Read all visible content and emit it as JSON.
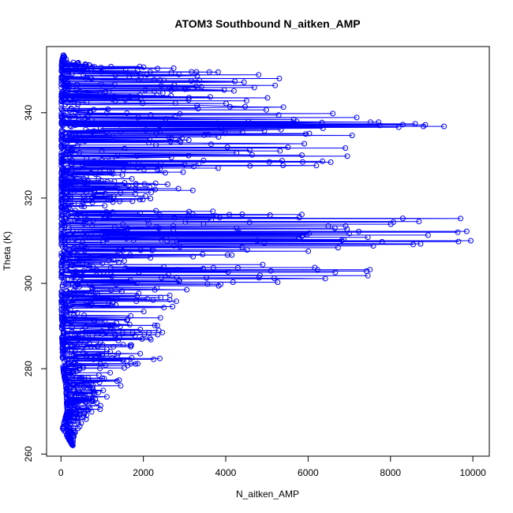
{
  "chart_data": {
    "type": "line",
    "title": "ATOM3 Southbound N_aitken_AMP",
    "xlabel": "N_aitken_AMP",
    "ylabel": "Theta (K)",
    "xlim": [
      -350,
      10400
    ],
    "ylim": [
      259.5,
      355.5
    ],
    "xticks": [
      0,
      2000,
      4000,
      6000,
      8000,
      10000
    ],
    "yticks": [
      260,
      280,
      300,
      320,
      340
    ],
    "xtick_labels": [
      "0",
      "2000",
      "4000",
      "6000",
      "8000",
      "10000"
    ],
    "ytick_labels": [
      "260",
      "280",
      "300",
      "320",
      "340"
    ],
    "grid": false,
    "series": [
      {
        "color": "#0000ff",
        "marker": "open-circle",
        "line": true,
        "dense_profile": [
          {
            "y": 262,
            "xmin": 280,
            "xmax": 380
          },
          {
            "y": 266,
            "xmin": 40,
            "xmax": 420
          },
          {
            "y": 270,
            "xmin": 150,
            "xmax": 900
          },
          {
            "y": 276,
            "xmin": 120,
            "xmax": 1400
          },
          {
            "y": 280,
            "xmin": 50,
            "xmax": 1500
          },
          {
            "y": 282,
            "xmin": 40,
            "xmax": 2400
          },
          {
            "y": 286,
            "xmin": 30,
            "xmax": 1800
          },
          {
            "y": 288,
            "xmin": 20,
            "xmax": 2800
          },
          {
            "y": 292,
            "xmin": 20,
            "xmax": 2600
          },
          {
            "y": 295,
            "xmin": 10,
            "xmax": 2900
          },
          {
            "y": 298,
            "xmin": 10,
            "xmax": 3000
          },
          {
            "y": 301,
            "xmin": 10,
            "xmax": 7400
          },
          {
            "y": 303,
            "xmin": 10,
            "xmax": 7500
          },
          {
            "y": 306,
            "xmin": 10,
            "xmax": 3800
          },
          {
            "y": 310,
            "xmin": 10,
            "xmax": 10000
          },
          {
            "y": 312,
            "xmin": 10,
            "xmax": 9900
          },
          {
            "y": 315,
            "xmin": 10,
            "xmax": 9700
          },
          {
            "y": 318,
            "xmin": 10,
            "xmax": 1500
          },
          {
            "y": 322,
            "xmin": 10,
            "xmax": 3000
          },
          {
            "y": 325,
            "xmin": 10,
            "xmax": 2000
          },
          {
            "y": 328,
            "xmin": 10,
            "xmax": 6000
          },
          {
            "y": 331,
            "xmin": 10,
            "xmax": 7200
          },
          {
            "y": 334,
            "xmin": 10,
            "xmax": 6500
          },
          {
            "y": 337,
            "xmin": 10,
            "xmax": 9300
          },
          {
            "y": 340,
            "xmin": 10,
            "xmax": 6600
          },
          {
            "y": 343,
            "xmin": 10,
            "xmax": 5000
          },
          {
            "y": 346,
            "xmin": 10,
            "xmax": 5300
          },
          {
            "y": 349,
            "xmin": 10,
            "xmax": 5300
          },
          {
            "y": 352,
            "xmin": 20,
            "xmax": 150
          },
          {
            "y": 353.5,
            "xmin": 60,
            "xmax": 110
          }
        ],
        "outliers": [
          [
            9950,
            310
          ],
          [
            9850,
            312.2
          ],
          [
            9700,
            315.2
          ],
          [
            9650,
            309.8
          ],
          [
            9300,
            336.8
          ],
          [
            8800,
            336.8
          ],
          [
            8600,
            337.4
          ],
          [
            8300,
            337.2
          ],
          [
            8200,
            336.6
          ],
          [
            7500,
            303.2
          ],
          [
            7450,
            301.8
          ],
          [
            7450,
            310.8
          ],
          [
            6950,
            329.8
          ],
          [
            6600,
            339.8
          ],
          [
            6550,
            328.4
          ],
          [
            6350,
            328.6
          ],
          [
            6200,
            327.6
          ],
          [
            5650,
            338.4
          ],
          [
            5300,
            348
          ],
          [
            5200,
            346.4
          ],
          [
            3650,
            314.9
          ],
          [
            3200,
            321.8
          ],
          [
            2850,
            322.2
          ],
          [
            2800,
            295.8
          ],
          [
            2400,
            282.4
          ],
          [
            2250,
            282.2
          ],
          [
            1450,
            276
          ],
          [
            950,
            270.5
          ]
        ]
      }
    ]
  }
}
